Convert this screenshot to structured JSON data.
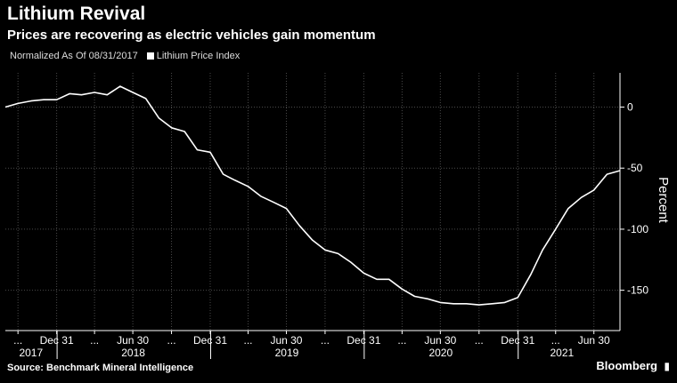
{
  "header": {
    "title": "Lithium Revival",
    "subtitle": "Prices are recovering as electric vehicles gain momentum"
  },
  "legend": {
    "note": "Normalized As Of 08/31/2017",
    "series_label": "Lithium Price Index"
  },
  "footer": {
    "source": "Source: Benchmark Mineral Intelligence",
    "brand": "Bloomberg"
  },
  "colors": {
    "background": "#000000",
    "line": "#ffffff",
    "grid": "#444444"
  },
  "chart_data": {
    "type": "line",
    "ylabel": "Percent",
    "ylim": [
      -183,
      28
    ],
    "yticks": [
      0,
      -50,
      -100,
      -150
    ],
    "ytick_labels": [
      "0",
      "-50",
      "-100",
      "-150"
    ],
    "xlim": [
      "2017-08-31",
      "2021-08-31"
    ],
    "x_tick_labels": [
      {
        "date": "2017-09-30",
        "label": "..."
      },
      {
        "date": "2017-12-31",
        "label": "Dec 31"
      },
      {
        "date": "2018-03-31",
        "label": "..."
      },
      {
        "date": "2018-06-30",
        "label": "Jun 30"
      },
      {
        "date": "2018-09-30",
        "label": "..."
      },
      {
        "date": "2018-12-31",
        "label": "Dec 31"
      },
      {
        "date": "2019-03-31",
        "label": "..."
      },
      {
        "date": "2019-06-30",
        "label": "Jun 30"
      },
      {
        "date": "2019-09-30",
        "label": "..."
      },
      {
        "date": "2019-12-31",
        "label": "Dec 31"
      },
      {
        "date": "2020-03-31",
        "label": "..."
      },
      {
        "date": "2020-06-30",
        "label": "Jun 30"
      },
      {
        "date": "2020-09-30",
        "label": "..."
      },
      {
        "date": "2020-12-31",
        "label": "Dec 31"
      },
      {
        "date": "2021-03-31",
        "label": "..."
      },
      {
        "date": "2021-06-30",
        "label": "Jun 30"
      }
    ],
    "x_year_labels": [
      {
        "date": "2017-10-31",
        "label": "2017"
      },
      {
        "date": "2018-07-01",
        "label": "2018"
      },
      {
        "date": "2019-07-01",
        "label": "2019"
      },
      {
        "date": "2020-07-01",
        "label": "2020"
      },
      {
        "date": "2021-04-15",
        "label": "2021"
      }
    ],
    "x_year_boundaries": [
      "2018-01-01",
      "2019-01-01",
      "2020-01-01",
      "2021-01-01"
    ],
    "series": [
      {
        "name": "Lithium Price Index",
        "x": [
          "2017-08-31",
          "2017-09-30",
          "2017-10-31",
          "2017-11-30",
          "2017-12-31",
          "2018-01-31",
          "2018-02-28",
          "2018-03-31",
          "2018-04-30",
          "2018-05-31",
          "2018-06-30",
          "2018-07-31",
          "2018-08-31",
          "2018-09-30",
          "2018-10-31",
          "2018-11-30",
          "2018-12-31",
          "2019-01-31",
          "2019-02-28",
          "2019-03-31",
          "2019-04-30",
          "2019-05-31",
          "2019-06-30",
          "2019-07-31",
          "2019-08-31",
          "2019-09-30",
          "2019-10-31",
          "2019-11-30",
          "2019-12-31",
          "2020-01-31",
          "2020-02-29",
          "2020-03-31",
          "2020-04-30",
          "2020-05-31",
          "2020-06-30",
          "2020-07-31",
          "2020-08-31",
          "2020-09-30",
          "2020-10-31",
          "2020-11-30",
          "2020-12-31",
          "2021-01-31",
          "2021-02-28",
          "2021-03-31",
          "2021-04-30",
          "2021-05-31",
          "2021-06-30",
          "2021-07-31",
          "2021-08-31"
        ],
        "values": [
          0,
          3,
          5,
          6,
          6,
          11,
          10,
          12,
          10,
          17,
          12,
          7,
          -9,
          -17,
          -20,
          -35,
          -37,
          -55,
          -60,
          -65,
          -73,
          -78,
          -83,
          -97,
          -109,
          -117,
          -120,
          -127,
          -136,
          -141,
          -141,
          -149,
          -155,
          -157,
          -160,
          -161,
          -161,
          -162,
          -161,
          -160,
          -156,
          -137,
          -117,
          -100,
          -83,
          -74,
          -68,
          -55,
          -52
        ]
      }
    ]
  }
}
